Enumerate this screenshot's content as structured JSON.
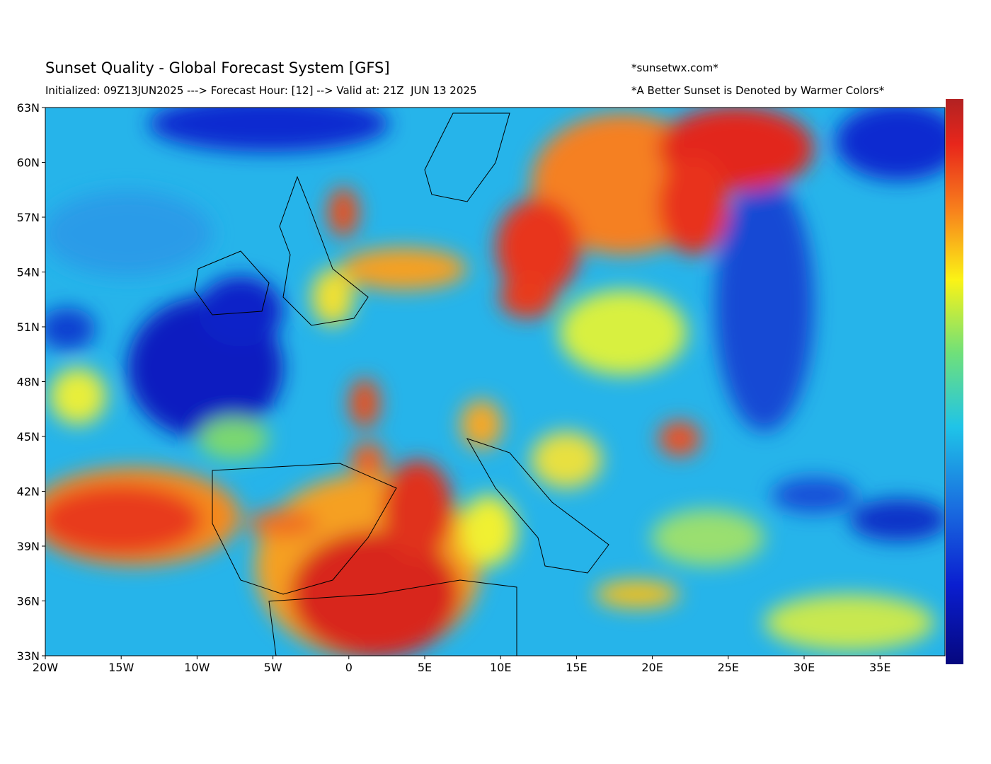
{
  "header": {
    "title": "Sunset Quality - Global Forecast System [GFS]",
    "subtitle": "Initialized: 09Z13JUN2025 ---> Forecast Hour: [12] --> Valid at: 21Z  JUN 13 2025",
    "site": "*sunsetwx.com*",
    "note": "*A Better Sunset is Denoted by Warmer Colors*"
  },
  "map": {
    "lat_labels": [
      "63N",
      "60N",
      "57N",
      "54N",
      "51N",
      "48N",
      "45N",
      "42N",
      "39N",
      "36N",
      "33N"
    ],
    "lon_labels": [
      "20W",
      "15W",
      "10W",
      "5W",
      "0",
      "5E",
      "10E",
      "15E",
      "20E",
      "25E",
      "30E",
      "35E"
    ]
  }
}
